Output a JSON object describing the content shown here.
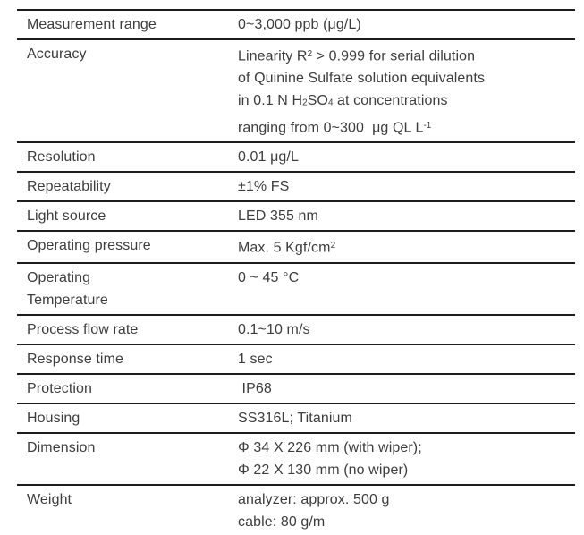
{
  "colors": {
    "text": "#3d3d3d",
    "line": "#1d1d1d",
    "bg": "#ffffff"
  },
  "table": {
    "rows": [
      {
        "label_lines": [
          "Measurement range"
        ],
        "value_lines": [
          [
            {
              "t": "0~3,000 ppb (μg/L)"
            }
          ]
        ]
      },
      {
        "label_lines": [
          "Accuracy"
        ],
        "value_lines": [
          [
            {
              "t": "Linearity R"
            },
            {
              "t": "2",
              "s": "sup"
            },
            {
              "t": " > 0.999 for serial dilution"
            }
          ],
          [
            {
              "t": "of Quinine Sulfate solution equivalents"
            }
          ],
          [
            {
              "t": "in 0.1 N H"
            },
            {
              "t": "2",
              "s": "sub"
            },
            {
              "t": "SO"
            },
            {
              "t": "4",
              "s": "sub"
            },
            {
              "t": " at concentrations"
            }
          ],
          [
            {
              "t": "ranging from 0~300  μg QL L"
            },
            {
              "t": "-1",
              "s": "sup"
            }
          ]
        ]
      },
      {
        "label_lines": [
          "Resolution"
        ],
        "value_lines": [
          [
            {
              "t": "0.01 μg/L"
            }
          ]
        ]
      },
      {
        "label_lines": [
          "Repeatability"
        ],
        "value_lines": [
          [
            {
              "t": "±1% FS"
            }
          ]
        ]
      },
      {
        "label_lines": [
          "Light source"
        ],
        "value_lines": [
          [
            {
              "t": "LED 355 nm"
            }
          ]
        ]
      },
      {
        "label_lines": [
          "Operating pressure"
        ],
        "value_lines": [
          [
            {
              "t": "Max. 5 Kgf/cm"
            },
            {
              "t": "2",
              "s": "sup"
            }
          ]
        ]
      },
      {
        "label_lines": [
          "Operating",
          "Temperature"
        ],
        "value_lines": [
          [
            {
              "t": "0 ~ 45 °C"
            }
          ]
        ]
      },
      {
        "label_lines": [
          "Process flow rate"
        ],
        "value_lines": [
          [
            {
              "t": "0.1~10 m/s"
            }
          ]
        ]
      },
      {
        "label_lines": [
          "Response time"
        ],
        "value_lines": [
          [
            {
              "t": "1 sec"
            }
          ]
        ]
      },
      {
        "label_lines": [
          "Protection"
        ],
        "value_lines": [
          [
            {
              "t": " IP68"
            }
          ]
        ]
      },
      {
        "label_lines": [
          "Housing"
        ],
        "value_lines": [
          [
            {
              "t": "SS316L; Titanium"
            }
          ]
        ]
      },
      {
        "label_lines": [
          "Dimension"
        ],
        "value_lines": [
          [
            {
              "t": "Φ 34 X 226 mm (with wiper);"
            }
          ],
          [
            {
              "t": "Φ 22 X 130 mm (no wiper)"
            }
          ]
        ]
      },
      {
        "label_lines": [
          "Weight"
        ],
        "value_lines": [
          [
            {
              "t": "analyzer: approx. 500 g"
            }
          ],
          [
            {
              "t": "cable: 80 g/m"
            }
          ]
        ]
      }
    ]
  }
}
